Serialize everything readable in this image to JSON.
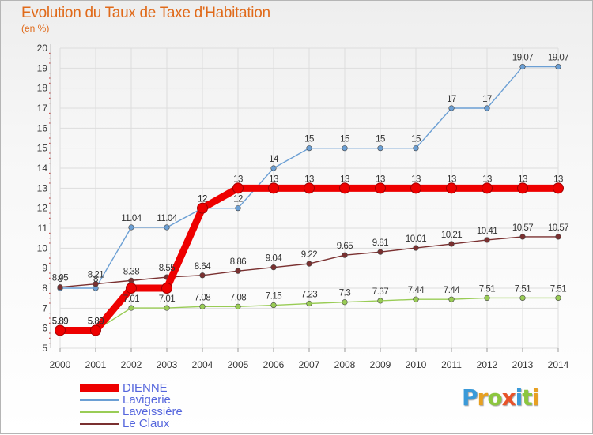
{
  "title": "Evolution du Taux de Taxe d'Habitation",
  "subtitle": "(en %)",
  "brand": {
    "letters": [
      "P",
      "r",
      "o",
      "x",
      "i",
      "t",
      "i"
    ],
    "colors": [
      "#3a9ad9",
      "#e8a020",
      "#8cc63f",
      "#e8532a",
      "#3a9ad9",
      "#8cc63f",
      "#e8a020"
    ]
  },
  "chart_data": {
    "type": "line",
    "x": [
      "2000",
      "2001",
      "2002",
      "2003",
      "2004",
      "2005",
      "2006",
      "2007",
      "2008",
      "2009",
      "2010",
      "2011",
      "2012",
      "2013",
      "2014"
    ],
    "ylim": [
      5,
      20
    ],
    "yticks": [
      5,
      6,
      7,
      8,
      9,
      10,
      11,
      12,
      13,
      14,
      15,
      16,
      17,
      18,
      19,
      20
    ],
    "grid": true,
    "legend_position": "bottom-left",
    "series": [
      {
        "name": "DIENNE",
        "color": "#ee0000",
        "values": [
          5.89,
          5.89,
          8,
          8,
          12,
          13,
          13,
          13,
          13,
          13,
          13,
          13,
          13,
          13,
          13
        ],
        "labels": [
          "5.89",
          "5.89",
          "",
          "",
          "12",
          "13",
          "13",
          "13",
          "13",
          "13",
          "13",
          "13",
          "13",
          "13",
          "13"
        ]
      },
      {
        "name": "Lavigerie",
        "color": "#6b9fd4",
        "values": [
          8,
          8,
          11.04,
          11.04,
          12,
          12,
          14,
          15,
          15,
          15,
          15,
          17,
          17,
          19.07,
          19.07
        ],
        "labels": [
          "8",
          "8",
          "11.04",
          "11.04",
          "12",
          "12",
          "14",
          "15",
          "15",
          "15",
          "15",
          "17",
          "17",
          "19.07",
          "19.07"
        ]
      },
      {
        "name": "Laveissière",
        "color": "#99cc55",
        "values": [
          5.89,
          5.89,
          7.01,
          7.01,
          7.08,
          7.08,
          7.15,
          7.23,
          7.3,
          7.37,
          7.44,
          7.44,
          7.51,
          7.51,
          7.51
        ],
        "labels": [
          "5.89",
          "5.89",
          "7.01",
          "7.01",
          "7.08",
          "7.08",
          "7.15",
          "7.23",
          "7.3",
          "7.37",
          "7.44",
          "7.44",
          "7.51",
          "7.51",
          "7.51"
        ]
      },
      {
        "name": "Le Claux",
        "color": "#7a3030",
        "values": [
          8.05,
          8.21,
          8.38,
          8.55,
          8.64,
          8.86,
          9.04,
          9.22,
          9.65,
          9.81,
          10.01,
          10.21,
          10.41,
          10.57,
          10.57
        ],
        "labels": [
          "8.05",
          "8.21",
          "8.38",
          "8.55",
          "8.64",
          "8.86",
          "9.04",
          "9.22",
          "9.65",
          "9.81",
          "10.01",
          "10.21",
          "10.41",
          "10.57",
          "10.57"
        ]
      }
    ]
  }
}
